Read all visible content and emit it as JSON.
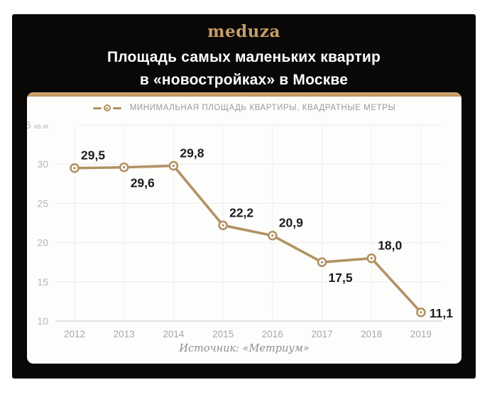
{
  "page": {
    "background": "#ffffff",
    "poster_background": "#090807"
  },
  "header": {
    "logo": "meduza",
    "logo_color": "#c59d66",
    "title_line1": "Площадь самых маленьких квартир",
    "title_line2": "в «новостройках» в Москве"
  },
  "legend": {
    "label": "МИНИМАЛЬНАЯ ПЛОЩАДЬ КВАРТИРЫ, КВАДРАТНЫЕ МЕТРЫ"
  },
  "card": {
    "accent_color": "#c9a069",
    "source": "Источник: «Метриум»"
  },
  "chart_data": {
    "type": "line",
    "title": "Площадь самых маленьких квартир в «новостройках» в Москве",
    "categories": [
      "2012",
      "2013",
      "2014",
      "2015",
      "2016",
      "2017",
      "2018",
      "2019"
    ],
    "series": [
      {
        "name": "Минимальная площадь квартиры, квадратные метры",
        "values": [
          29.5,
          29.6,
          29.8,
          22.2,
          20.9,
          17.5,
          18.0,
          11.1
        ]
      }
    ],
    "point_labels": [
      "29,5",
      "29,6",
      "29,8",
      "22,2",
      "20,9",
      "17,5",
      "18,0",
      "11,1"
    ],
    "label_positions": [
      "above",
      "below",
      "above",
      "above",
      "above",
      "below",
      "above",
      "right"
    ],
    "y_ticks": [
      35,
      30,
      25,
      20,
      15,
      10
    ],
    "y_unit": "кв.м",
    "ylim": [
      10,
      35
    ],
    "xlabel": "",
    "ylabel": "",
    "grid": true,
    "legend_position": "top",
    "line_color": "#b29263",
    "marker_fill": "#ffffff",
    "data_label_color": "#1c1c1c",
    "source": "Источник: «Метриум»"
  }
}
